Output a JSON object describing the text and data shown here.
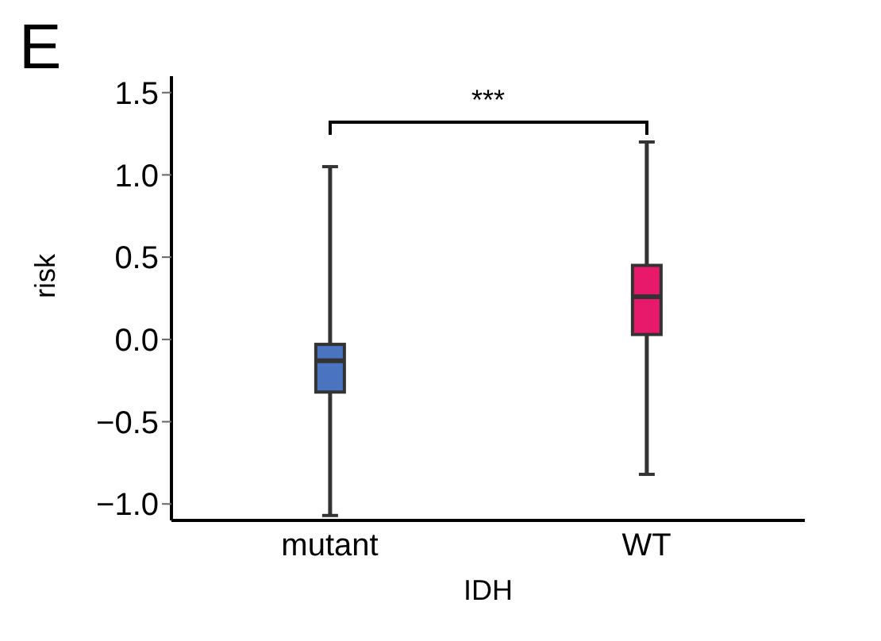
{
  "chart_data": {
    "type": "box",
    "xlabel": "IDH",
    "ylabel": "risk",
    "categories": [
      "mutant",
      "WT"
    ],
    "colors": [
      "#4a73c0",
      "#e8196b"
    ],
    "boxes": [
      {
        "low": -1.07,
        "q1": -0.32,
        "median": -0.13,
        "q3": -0.03,
        "high": 1.05
      },
      {
        "low": -0.82,
        "q1": 0.03,
        "median": 0.26,
        "q3": 0.45,
        "high": 1.2
      }
    ],
    "ylim": [
      -1.1,
      1.6
    ],
    "yticks": [
      {
        "value": -1,
        "label": "−1.0"
      },
      -0.5,
      {
        "value": 0,
        "label": "0.0"
      },
      0.5,
      {
        "value": 1,
        "label": "1.0"
      },
      1.5
    ],
    "annotations": [
      "E",
      "***"
    ]
  }
}
